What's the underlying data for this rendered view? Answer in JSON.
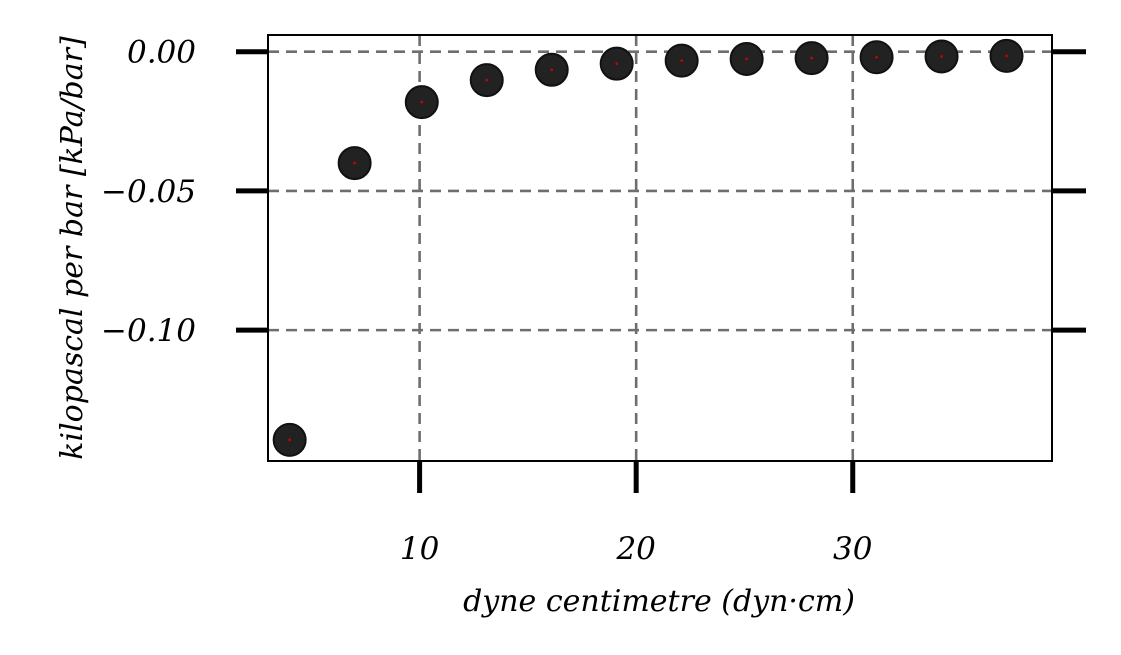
{
  "chart_data": {
    "type": "scatter",
    "title": "",
    "xlabel": "dyne centimetre (dyn·cm)",
    "ylabel": "kilopascal per bar [kPa/bar]",
    "xlim": [
      3,
      39.2
    ],
    "ylim": [
      -0.147,
      0.006
    ],
    "xticks": [
      10,
      20,
      30
    ],
    "xtick_labels": [
      "10",
      "20",
      "30"
    ],
    "yticks": [
      0.0,
      -0.05,
      -0.1
    ],
    "ytick_labels": [
      "0.00",
      "−0.05",
      "−0.10"
    ],
    "grid": true,
    "legend": "none",
    "series": [
      {
        "color": "#222222",
        "x": [
          4.0,
          7.0,
          10.1,
          13.1,
          16.1,
          19.1,
          22.1,
          25.1,
          28.1,
          31.1,
          34.1,
          37.1
        ],
        "y": [
          -0.1394,
          -0.04,
          -0.0181,
          -0.0102,
          -0.0065,
          -0.0043,
          -0.0032,
          -0.0026,
          -0.0023,
          -0.002,
          -0.0017,
          -0.0015
        ]
      }
    ]
  }
}
